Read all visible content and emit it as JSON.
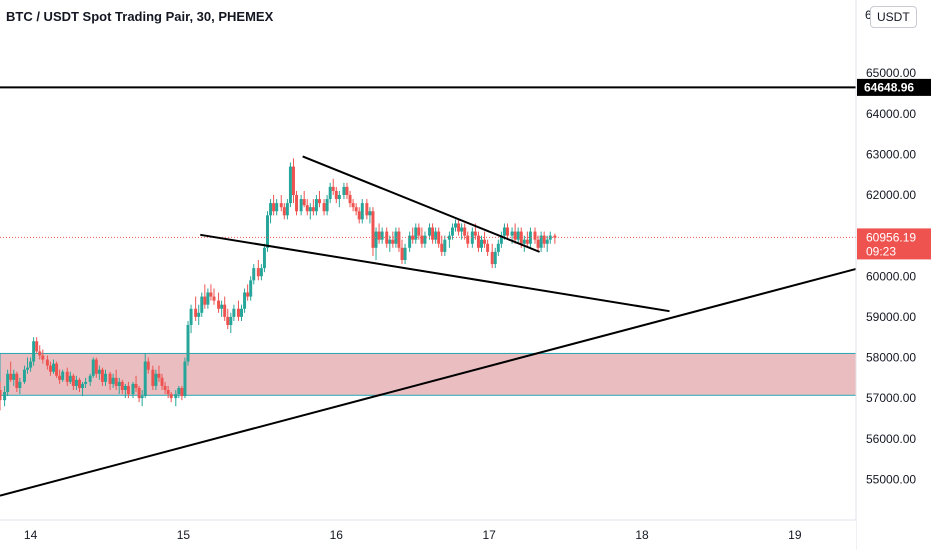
{
  "header": {
    "title": "BTC / USDT Spot Trading Pair, 30, PHEMEX",
    "currency_button": "USDT"
  },
  "colors": {
    "up": "#26a69a",
    "down": "#ef5350",
    "zone_fill": "#e6b3b5",
    "zone_border": "#26a6b0",
    "trendline": "#000000",
    "last_price_line": "#ef5350"
  },
  "chart_data": {
    "type": "candlestick",
    "title": "BTC / USDT Spot Trading Pair, 30, PHEMEX",
    "interval": "30",
    "exchange": "PHEMEX",
    "x_tick_labels": [
      "14",
      "15",
      "16",
      "17",
      "18",
      "19"
    ],
    "x_ticks": [
      14,
      15,
      16,
      17,
      18,
      19
    ],
    "xlim": [
      13.8,
      19.4
    ],
    "y_tick_labels": [
      "55000.00",
      "56000.00",
      "57000.00",
      "58000.00",
      "59000.00",
      "60000.00",
      "61000.00",
      "62000.00",
      "63000.00",
      "64000.00",
      "65000.00"
    ],
    "y_ticks": [
      55000,
      56000,
      57000,
      58000,
      59000,
      60000,
      61000,
      62000,
      63000,
      64000,
      65000
    ],
    "ylim": [
      54000,
      66800
    ],
    "grid": false,
    "horizontal_line": {
      "price": 64648.96,
      "label": "64648.96"
    },
    "last_price": {
      "price": 60956.19,
      "label": "60956.19",
      "countdown": "09:23"
    },
    "demand_zone": {
      "low": 57070,
      "high": 58100
    },
    "trendlines": [
      {
        "name": "upper-channel",
        "from": [
          15.78,
          62950
        ],
        "to": [
          17.33,
          60600
        ]
      },
      {
        "name": "lower-channel",
        "from": [
          15.11,
          61020
        ],
        "to": [
          18.18,
          59140
        ]
      },
      {
        "name": "rising-support",
        "from": [
          13.8,
          54600
        ],
        "to": [
          19.4,
          60180
        ]
      }
    ],
    "candles": [
      [
        13.8,
        57200,
        57400,
        56700,
        56950
      ],
      [
        13.83,
        56950,
        57300,
        56800,
        57150
      ],
      [
        13.85,
        57150,
        57700,
        57050,
        57600
      ],
      [
        13.87,
        57600,
        57900,
        57400,
        57450
      ],
      [
        13.89,
        57450,
        57700,
        57300,
        57600
      ],
      [
        13.91,
        57600,
        57650,
        57150,
        57250
      ],
      [
        13.93,
        57250,
        57500,
        57100,
        57400
      ],
      [
        13.96,
        57400,
        57800,
        57350,
        57700
      ],
      [
        13.98,
        57700,
        58000,
        57600,
        57750
      ],
      [
        14.0,
        57750,
        58000,
        57650,
        57900
      ],
      [
        14.02,
        57900,
        58500,
        57800,
        58400
      ],
      [
        14.04,
        58400,
        58500,
        58100,
        58150
      ],
      [
        14.06,
        58150,
        58300,
        57950,
        58050
      ],
      [
        14.08,
        58050,
        58200,
        57850,
        57950
      ],
      [
        14.11,
        57950,
        58050,
        57700,
        57800
      ],
      [
        14.13,
        57800,
        57900,
        57550,
        57650
      ],
      [
        14.15,
        57650,
        57950,
        57600,
        57850
      ],
      [
        14.17,
        57850,
        57900,
        57500,
        57550
      ],
      [
        14.19,
        57550,
        57700,
        57350,
        57450
      ],
      [
        14.21,
        57450,
        57700,
        57400,
        57650
      ],
      [
        14.24,
        57650,
        57750,
        57300,
        57400
      ],
      [
        14.26,
        57400,
        57650,
        57350,
        57550
      ],
      [
        14.28,
        57550,
        57600,
        57200,
        57300
      ],
      [
        14.3,
        57300,
        57550,
        57200,
        57450
      ],
      [
        14.32,
        57450,
        57500,
        57150,
        57250
      ],
      [
        14.34,
        57250,
        57400,
        57050,
        57350
      ],
      [
        14.36,
        57350,
        57500,
        57250,
        57400
      ],
      [
        14.39,
        57400,
        57600,
        57300,
        57550
      ],
      [
        14.41,
        57550,
        58000,
        57500,
        57950
      ],
      [
        14.43,
        57950,
        58000,
        57500,
        57600
      ],
      [
        14.45,
        57600,
        57800,
        57450,
        57700
      ],
      [
        14.47,
        57700,
        57750,
        57300,
        57400
      ],
      [
        14.49,
        57400,
        57700,
        57300,
        57600
      ],
      [
        14.52,
        57600,
        57650,
        57200,
        57350
      ],
      [
        14.54,
        57350,
        57600,
        57250,
        57500
      ],
      [
        14.56,
        57500,
        57700,
        57200,
        57300
      ],
      [
        14.58,
        57300,
        57500,
        57100,
        57400
      ],
      [
        14.6,
        57400,
        57450,
        57100,
        57200
      ],
      [
        14.62,
        57200,
        57350,
        57000,
        57300
      ],
      [
        14.64,
        57300,
        57400,
        57000,
        57100
      ],
      [
        14.67,
        57100,
        57400,
        57000,
        57350
      ],
      [
        14.69,
        57350,
        57550,
        57150,
        57250
      ],
      [
        14.71,
        57250,
        57300,
        56900,
        57000
      ],
      [
        14.73,
        57000,
        57200,
        56800,
        57050
      ],
      [
        14.75,
        57050,
        58100,
        57000,
        57900
      ],
      [
        14.77,
        57900,
        58000,
        57600,
        57700
      ],
      [
        14.8,
        57700,
        57800,
        57200,
        57300
      ],
      [
        14.82,
        57300,
        57700,
        57200,
        57600
      ],
      [
        14.84,
        57600,
        57800,
        57400,
        57500
      ],
      [
        14.86,
        57500,
        57600,
        57200,
        57300
      ],
      [
        14.88,
        57300,
        57400,
        57100,
        57200
      ],
      [
        14.9,
        57200,
        57300,
        57000,
        57100
      ],
      [
        14.92,
        57100,
        57150,
        56900,
        57000
      ],
      [
        14.95,
        57000,
        57200,
        56800,
        57100
      ],
      [
        14.97,
        57100,
        57300,
        57000,
        57250
      ],
      [
        14.99,
        57250,
        57300,
        56950,
        57050
      ],
      [
        15.01,
        57050,
        58000,
        57000,
        57900
      ],
      [
        15.03,
        57900,
        58900,
        57800,
        58800
      ],
      [
        15.05,
        58800,
        59300,
        58600,
        59200
      ],
      [
        15.08,
        59200,
        59500,
        58900,
        59000
      ],
      [
        15.1,
        59000,
        59300,
        58800,
        59100
      ],
      [
        15.12,
        59100,
        59600,
        59000,
        59500
      ],
      [
        15.14,
        59500,
        59800,
        59200,
        59300
      ],
      [
        15.16,
        59300,
        59700,
        59200,
        59600
      ],
      [
        15.18,
        59600,
        59800,
        59400,
        59500
      ],
      [
        15.2,
        59500,
        59700,
        59300,
        59400
      ],
      [
        15.23,
        59400,
        59600,
        59100,
        59200
      ],
      [
        15.25,
        59200,
        59400,
        59000,
        59300
      ],
      [
        15.27,
        59300,
        59500,
        58900,
        59000
      ],
      [
        15.29,
        59000,
        59200,
        58700,
        58800
      ],
      [
        15.31,
        58800,
        59100,
        58600,
        59000
      ],
      [
        15.33,
        59000,
        59300,
        58900,
        59200
      ],
      [
        15.36,
        59200,
        59400,
        58900,
        59000
      ],
      [
        15.38,
        59000,
        59300,
        58900,
        59200
      ],
      [
        15.4,
        59200,
        59700,
        59100,
        59600
      ],
      [
        15.42,
        59600,
        59800,
        59400,
        59500
      ],
      [
        15.44,
        59500,
        60000,
        59400,
        59900
      ],
      [
        15.46,
        59900,
        60300,
        59800,
        60200
      ],
      [
        15.49,
        60200,
        60400,
        59900,
        60000
      ],
      [
        15.51,
        60000,
        60300,
        59900,
        60200
      ],
      [
        15.53,
        60200,
        60800,
        60100,
        60700
      ],
      [
        15.55,
        60700,
        61600,
        60600,
        61500
      ],
      [
        15.57,
        61500,
        61900,
        61300,
        61800
      ],
      [
        15.59,
        61800,
        62000,
        61500,
        61600
      ],
      [
        15.61,
        61600,
        61900,
        61500,
        61800
      ],
      [
        15.64,
        61800,
        62000,
        61600,
        61700
      ],
      [
        15.66,
        61700,
        61800,
        61400,
        61500
      ],
      [
        15.68,
        61500,
        61900,
        61400,
        61800
      ],
      [
        15.7,
        61800,
        62800,
        61700,
        62700
      ],
      [
        15.72,
        62700,
        62900,
        61800,
        62000
      ],
      [
        15.74,
        62000,
        62100,
        61500,
        61600
      ],
      [
        15.77,
        61600,
        62000,
        61500,
        61900
      ],
      [
        15.79,
        61900,
        62100,
        61700,
        61750
      ],
      [
        15.81,
        61750,
        61900,
        61500,
        61600
      ],
      [
        15.83,
        61600,
        61800,
        61400,
        61700
      ],
      [
        15.85,
        61700,
        61900,
        61500,
        61600
      ],
      [
        15.87,
        61600,
        62000,
        61500,
        61900
      ],
      [
        15.89,
        61900,
        62100,
        61700,
        61800
      ],
      [
        15.92,
        61800,
        61900,
        61500,
        61600
      ],
      [
        15.94,
        61600,
        62000,
        61500,
        61900
      ],
      [
        15.96,
        61900,
        62300,
        61800,
        62200
      ],
      [
        15.98,
        62200,
        62400,
        62000,
        62100
      ],
      [
        16.0,
        62100,
        62200,
        61800,
        61900
      ],
      [
        16.02,
        61900,
        62100,
        61700,
        62000
      ],
      [
        16.05,
        62000,
        62300,
        61900,
        62200
      ],
      [
        16.07,
        62200,
        62300,
        61900,
        62000
      ],
      [
        16.09,
        62000,
        62100,
        61700,
        61800
      ],
      [
        16.11,
        61800,
        61900,
        61600,
        61700
      ],
      [
        16.13,
        61700,
        61800,
        61500,
        61600
      ],
      [
        16.15,
        61600,
        61700,
        61300,
        61400
      ],
      [
        16.17,
        61400,
        61900,
        61300,
        61800
      ],
      [
        16.2,
        61800,
        61900,
        61400,
        61500
      ],
      [
        16.22,
        61500,
        61700,
        61300,
        61600
      ],
      [
        16.24,
        61600,
        61700,
        60500,
        60700
      ],
      [
        16.26,
        60700,
        61200,
        60400,
        61100
      ],
      [
        16.28,
        61100,
        61300,
        60800,
        60900
      ],
      [
        16.3,
        60900,
        61200,
        60800,
        61100
      ],
      [
        16.33,
        61100,
        61200,
        60700,
        60800
      ],
      [
        16.35,
        60800,
        61000,
        60600,
        60900
      ],
      [
        16.37,
        60900,
        61100,
        60700,
        60800
      ],
      [
        16.39,
        60800,
        61200,
        60700,
        61100
      ],
      [
        16.41,
        61100,
        61200,
        60600,
        60700
      ],
      [
        16.43,
        60700,
        60900,
        60300,
        60400
      ],
      [
        16.45,
        60400,
        60800,
        60300,
        60700
      ],
      [
        16.48,
        60700,
        61100,
        60600,
        61000
      ],
      [
        16.5,
        61000,
        61200,
        60800,
        60900
      ],
      [
        16.52,
        60900,
        61300,
        60800,
        61200
      ],
      [
        16.54,
        61200,
        61300,
        60900,
        61000
      ],
      [
        16.56,
        61000,
        61200,
        60700,
        60800
      ],
      [
        16.58,
        60800,
        61100,
        60700,
        61000
      ],
      [
        16.61,
        61000,
        61300,
        60900,
        61200
      ],
      [
        16.63,
        61200,
        61300,
        60800,
        60900
      ],
      [
        16.65,
        60900,
        61200,
        60800,
        61100
      ],
      [
        16.67,
        61100,
        61200,
        60700,
        60800
      ],
      [
        16.69,
        60800,
        61000,
        60500,
        60600
      ],
      [
        16.71,
        60600,
        61000,
        60500,
        60900
      ],
      [
        16.74,
        60900,
        61100,
        60700,
        61000
      ],
      [
        16.76,
        61000,
        61300,
        60900,
        61200
      ],
      [
        16.78,
        61200,
        61400,
        61100,
        61300
      ],
      [
        16.8,
        61300,
        61400,
        61000,
        61100
      ],
      [
        16.82,
        61100,
        61300,
        60900,
        61200
      ],
      [
        16.84,
        61200,
        61300,
        60900,
        61000
      ],
      [
        16.86,
        61000,
        61100,
        60700,
        60800
      ],
      [
        16.89,
        60800,
        61200,
        60700,
        61100
      ],
      [
        16.91,
        61100,
        61300,
        60900,
        61000
      ],
      [
        16.93,
        61000,
        61100,
        60600,
        60700
      ],
      [
        16.95,
        60700,
        61000,
        60600,
        60900
      ],
      [
        16.97,
        60900,
        61100,
        60700,
        60800
      ],
      [
        16.99,
        60800,
        60900,
        60500,
        60600
      ],
      [
        17.02,
        60600,
        60800,
        60200,
        60300
      ],
      [
        17.04,
        60300,
        60700,
        60200,
        60600
      ],
      [
        17.06,
        60600,
        60900,
        60500,
        60800
      ],
      [
        17.08,
        60800,
        61100,
        60700,
        61000
      ],
      [
        17.1,
        61000,
        61300,
        60900,
        61200
      ],
      [
        17.12,
        61200,
        61300,
        60900,
        61000
      ],
      [
        17.15,
        61000,
        61200,
        60800,
        61100
      ],
      [
        17.17,
        61100,
        61300,
        60800,
        60900
      ],
      [
        17.19,
        60900,
        61200,
        60800,
        61100
      ],
      [
        17.21,
        61100,
        61200,
        60700,
        60800
      ],
      [
        17.23,
        60800,
        61000,
        60600,
        60900
      ],
      [
        17.25,
        60900,
        61100,
        60700,
        60800
      ],
      [
        17.27,
        60800,
        61200,
        60700,
        61100
      ],
      [
        17.3,
        61100,
        61200,
        60800,
        60900
      ],
      [
        17.32,
        60900,
        61000,
        60600,
        60700
      ],
      [
        17.34,
        60700,
        61100,
        60600,
        61000
      ],
      [
        17.36,
        61000,
        61100,
        60700,
        60800
      ],
      [
        17.38,
        60800,
        61000,
        60600,
        60900
      ],
      [
        17.4,
        60900,
        61100,
        60800,
        61000
      ],
      [
        17.43,
        61000,
        61050,
        60800,
        60950
      ]
    ]
  }
}
